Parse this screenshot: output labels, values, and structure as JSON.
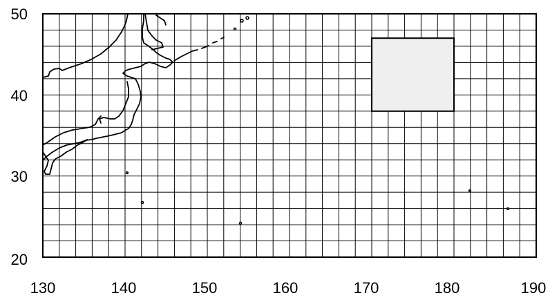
{
  "map": {
    "x_ticks": [
      "130",
      "140",
      "150",
      "160",
      "170",
      "180",
      "190"
    ],
    "y_ticks": [
      "50",
      "40",
      "30",
      "20"
    ],
    "lon_range": [
      130,
      190
    ],
    "lat_range": [
      20,
      50
    ],
    "grid_step_lon": 2,
    "grid_step_lat": 2,
    "region_box": {
      "lon": [
        170,
        180
      ],
      "lat": [
        38,
        47
      ],
      "fill": "#efefef"
    },
    "colors": {
      "grid": "#000000",
      "coast": "#000000",
      "background": "#ffffff"
    }
  }
}
